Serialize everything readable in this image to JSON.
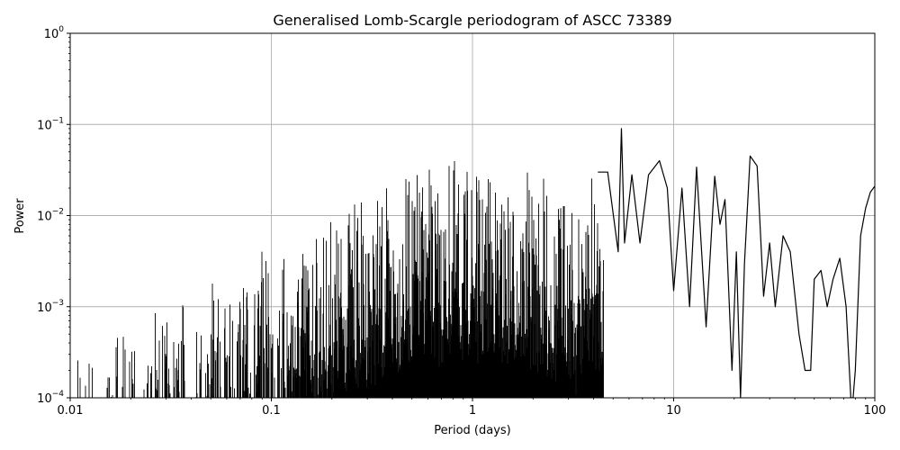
{
  "chart_data": {
    "type": "line",
    "title": "Generalised Lomb-Scargle periodogram of ASCC 73389",
    "xlabel": "Period (days)",
    "ylabel": "Power",
    "xscale": "log",
    "yscale": "log",
    "xlim": [
      0.01,
      100
    ],
    "ylim": [
      0.0001,
      1
    ],
    "grid": true,
    "line_color": "#000000",
    "x_ticks": [
      {
        "value": 0.01,
        "label": "0.01"
      },
      {
        "value": 0.1,
        "label": "0.1"
      },
      {
        "value": 1,
        "label": "1"
      },
      {
        "value": 10,
        "label": "10"
      },
      {
        "value": 100,
        "label": "100"
      }
    ],
    "y_ticks": [
      {
        "value": 0.0001,
        "base": "10",
        "exp": "−4"
      },
      {
        "value": 0.001,
        "base": "10",
        "exp": "−3"
      },
      {
        "value": 0.01,
        "base": "10",
        "exp": "−2"
      },
      {
        "value": 0.1,
        "base": "10",
        "exp": "−1"
      },
      {
        "value": 1,
        "base": "10",
        "exp": "0"
      }
    ],
    "series": [
      {
        "x": [
          0.01,
          0.0115,
          0.013,
          0.015,
          0.017,
          0.02,
          0.023,
          0.0265,
          0.03,
          0.035,
          0.04,
          0.045,
          0.05,
          0.056,
          0.062,
          0.07,
          0.08,
          0.09,
          0.1,
          0.11,
          0.125,
          0.14,
          0.16,
          0.18,
          0.2,
          0.225,
          0.25,
          0.28,
          0.32,
          0.36,
          0.4,
          0.45,
          0.5,
          0.56,
          0.63,
          0.7,
          0.8,
          0.9,
          1.0,
          1.1,
          1.25,
          1.4,
          1.6,
          1.8,
          2.0,
          2.3,
          2.6,
          2.9,
          3.3,
          3.7,
          4.2,
          4.7,
          5.3,
          5.5,
          5.7,
          6.2,
          6.8,
          7.5,
          8.5,
          9.3,
          10.0,
          11.0,
          12.0,
          13.0,
          14.5,
          16.0,
          17.0,
          18.0,
          19.5,
          20.5,
          21.5,
          22.5,
          24.0,
          26.0,
          28.0,
          30.0,
          32.0,
          35.0,
          38.0,
          42.0,
          45.0,
          48.0,
          50.0,
          54.0,
          58.0,
          62.0,
          67.0,
          72.0,
          76.0,
          78.0,
          80.0,
          85.0,
          90.0,
          95.0,
          100.0
        ],
        "y": [
          0.0004,
          0.0008,
          0.0005,
          0.0005,
          0.0005,
          0.0006,
          0.0008,
          0.0015,
          0.0009,
          0.0012,
          0.0014,
          0.0018,
          0.002,
          0.0018,
          0.0025,
          0.0028,
          0.0034,
          0.0045,
          0.0045,
          0.005,
          0.007,
          0.0085,
          0.012,
          0.01,
          0.015,
          0.016,
          0.02,
          0.019,
          0.022,
          0.02,
          0.025,
          0.03,
          0.035,
          0.045,
          0.04,
          0.03,
          0.048,
          0.03,
          0.055,
          0.028,
          0.05,
          0.03,
          0.035,
          0.03,
          0.032,
          0.025,
          0.02,
          0.035,
          0.015,
          0.03,
          0.03,
          0.03,
          0.004,
          0.09,
          0.005,
          0.028,
          0.005,
          0.028,
          0.04,
          0.02,
          0.0015,
          0.02,
          0.001,
          0.034,
          0.0006,
          0.027,
          0.008,
          0.015,
          0.0002,
          0.004,
          0.0001,
          0.003,
          0.045,
          0.035,
          0.0013,
          0.005,
          0.001,
          0.006,
          0.004,
          0.0005,
          0.0002,
          0.0002,
          0.002,
          0.0025,
          0.001,
          0.002,
          0.0034,
          0.001,
          0.0001,
          5e-05,
          0.0002,
          0.006,
          0.012,
          0.018,
          0.021
        ]
      }
    ]
  }
}
